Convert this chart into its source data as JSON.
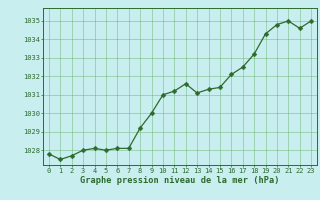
{
  "x": [
    0,
    1,
    2,
    3,
    4,
    5,
    6,
    7,
    8,
    9,
    10,
    11,
    12,
    13,
    14,
    15,
    16,
    17,
    18,
    19,
    20,
    21,
    22,
    23
  ],
  "y": [
    1027.8,
    1027.5,
    1027.7,
    1028.0,
    1028.1,
    1028.0,
    1028.1,
    1028.1,
    1029.2,
    1030.0,
    1031.0,
    1031.2,
    1031.6,
    1031.1,
    1031.3,
    1031.4,
    1032.1,
    1032.5,
    1033.2,
    1034.3,
    1034.8,
    1035.0,
    1034.6,
    1035.0
  ],
  "line_color": "#2d6a2d",
  "marker": "D",
  "marker_size": 2.5,
  "background_color": "#c8eef0",
  "grid_color": "#5aaa5a",
  "xlabel": "Graphe pression niveau de la mer (hPa)",
  "xlabel_color": "#2d6a2d",
  "ylabel_ticks": [
    1028,
    1029,
    1030,
    1031,
    1032,
    1033,
    1034,
    1035
  ],
  "ylim": [
    1027.2,
    1035.7
  ],
  "xlim": [
    -0.5,
    23.5
  ],
  "xticks": [
    0,
    1,
    2,
    3,
    4,
    5,
    6,
    7,
    8,
    9,
    10,
    11,
    12,
    13,
    14,
    15,
    16,
    17,
    18,
    19,
    20,
    21,
    22,
    23
  ],
  "tick_color": "#2d6a2d",
  "tick_label_color": "#2d6a2d",
  "tick_fontsize": 5.0,
  "xlabel_fontsize": 6.2
}
